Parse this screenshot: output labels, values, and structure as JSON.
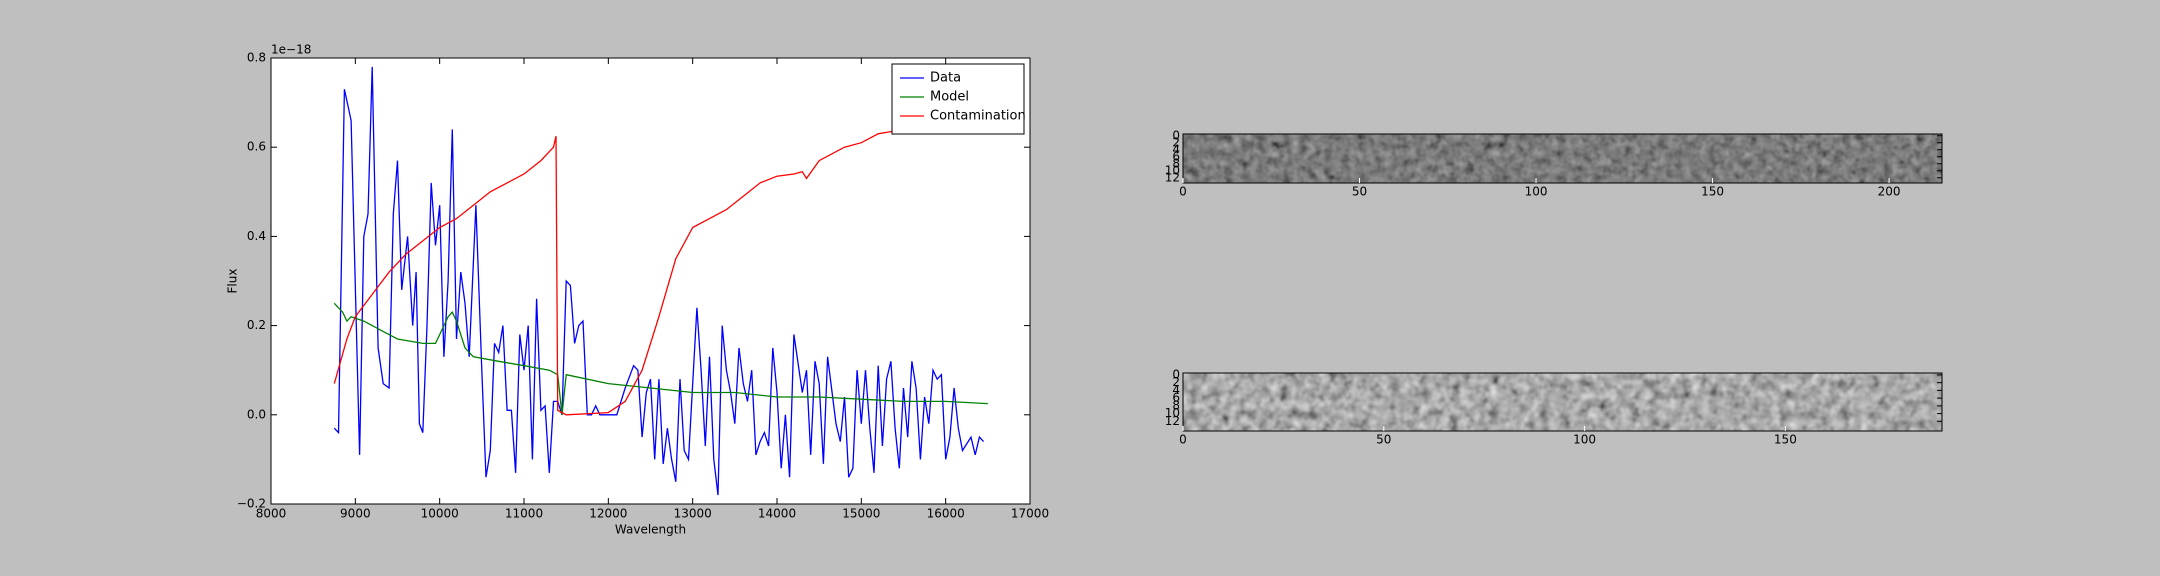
{
  "chart_data": [
    {
      "type": "line",
      "xlabel": "Wavelength",
      "ylabel": "Flux",
      "offset_text": "1e−18",
      "xlim": [
        8000,
        17000
      ],
      "xticks": [
        8000,
        9000,
        10000,
        11000,
        12000,
        13000,
        14000,
        15000,
        16000,
        17000
      ],
      "ylim": [
        -0.2,
        0.8
      ],
      "yticks": [
        {
          "value": -0.2,
          "label": "−0.2"
        },
        {
          "value": 0,
          "label": "0.0"
        },
        0.2,
        0.4,
        0.6,
        0.8
      ],
      "legend": "upper right",
      "series": [
        {
          "name": "Data",
          "color": "#0000ff",
          "x": [
            8750,
            8800,
            8870,
            8950,
            9050,
            9100,
            9150,
            9200,
            9270,
            9330,
            9400,
            9450,
            9500,
            9550,
            9620,
            9680,
            9720,
            9760,
            9800,
            9850,
            9900,
            9950,
            10000,
            10050,
            10100,
            10150,
            10200,
            10250,
            10300,
            10350,
            10430,
            10500,
            10550,
            10600,
            10650,
            10700,
            10750,
            10800,
            10850,
            10900,
            10950,
            11000,
            11050,
            11100,
            11150,
            11200,
            11250,
            11300,
            11350,
            11400,
            11450,
            11500,
            11550,
            11600,
            11650,
            11700,
            11750,
            11800,
            11850,
            11900,
            12000,
            12100,
            12200,
            12300,
            12350,
            12400,
            12450,
            12500,
            12550,
            12600,
            12650,
            12700,
            12750,
            12800,
            12850,
            12900,
            12950,
            13050,
            13100,
            13150,
            13200,
            13250,
            13300,
            13350,
            13400,
            13450,
            13500,
            13550,
            13600,
            13650,
            13700,
            13750,
            13800,
            13850,
            13900,
            13950,
            14000,
            14050,
            14100,
            14150,
            14200,
            14300,
            14350,
            14400,
            14450,
            14500,
            14550,
            14600,
            14700,
            14750,
            14800,
            14850,
            14900,
            14950,
            15000,
            15050,
            15100,
            15150,
            15200,
            15250,
            15300,
            15350,
            15400,
            15450,
            15500,
            15550,
            15600,
            15650,
            15700,
            15750,
            15800,
            15850,
            15900,
            15950,
            16000,
            16050,
            16100,
            16150,
            16200,
            16300,
            16350,
            16400,
            16450
          ],
          "values": [
            -0.03,
            -0.04,
            0.73,
            0.66,
            -0.09,
            0.4,
            0.45,
            0.78,
            0.15,
            0.07,
            0.06,
            0.45,
            0.57,
            0.28,
            0.4,
            0.2,
            0.32,
            -0.02,
            -0.04,
            0.2,
            0.52,
            0.38,
            0.47,
            0.13,
            0.3,
            0.64,
            0.17,
            0.32,
            0.25,
            0.13,
            0.47,
            0.1,
            -0.14,
            -0.08,
            0.16,
            0.14,
            0.2,
            0.01,
            0.01,
            -0.13,
            0.18,
            0.1,
            0.2,
            -0.1,
            0.26,
            0.01,
            0.02,
            -0.13,
            0.03,
            0.03,
            0,
            0.3,
            0.29,
            0.16,
            0.2,
            0.21,
            0,
            0,
            0.02,
            0,
            0,
            0,
            0.06,
            0.11,
            0.1,
            -0.05,
            0.05,
            0.08,
            -0.1,
            0.08,
            -0.11,
            -0.03,
            -0.1,
            -0.15,
            0.08,
            -0.08,
            -0.1,
            0.24,
            0.1,
            -0.07,
            0.13,
            -0.1,
            -0.18,
            0.2,
            0.1,
            0.05,
            -0.02,
            0.15,
            0.07,
            0.03,
            0.1,
            -0.09,
            -0.06,
            -0.04,
            -0.07,
            0.15,
            0.05,
            -0.12,
            0,
            -0.14,
            0.18,
            0.05,
            0.1,
            -0.09,
            0.12,
            0.07,
            -0.11,
            0.13,
            -0.02,
            -0.06,
            0.04,
            -0.14,
            -0.12,
            0.1,
            -0.02,
            0.1,
            -0.03,
            -0.13,
            0.11,
            -0.07,
            0.08,
            0.12,
            -0.03,
            -0.12,
            0.06,
            -0.05,
            0.12,
            0.06,
            -0.1,
            0.04,
            -0.02,
            0.1,
            0.08,
            0.09,
            -0.1,
            -0.05,
            0.06,
            -0.03,
            -0.08,
            -0.05,
            -0.09,
            -0.05,
            -0.06
          ]
        },
        {
          "name": "Model",
          "color": "#008000",
          "x": [
            8750,
            8850,
            8900,
            8950,
            9100,
            9300,
            9500,
            9800,
            9950,
            10000,
            10100,
            10150,
            10200,
            10300,
            10400,
            10700,
            11000,
            11300,
            11400,
            11450,
            11500,
            12000,
            12500,
            13000,
            13500,
            14000,
            14500,
            15000,
            15500,
            16000,
            16500
          ],
          "values": [
            0.25,
            0.23,
            0.21,
            0.22,
            0.21,
            0.19,
            0.17,
            0.16,
            0.16,
            0.18,
            0.22,
            0.23,
            0.21,
            0.15,
            0.13,
            0.12,
            0.11,
            0.1,
            0.09,
            0,
            0.09,
            0.07,
            0.06,
            0.05,
            0.05,
            0.04,
            0.04,
            0.035,
            0.03,
            0.03,
            0.025
          ]
        },
        {
          "name": "Contamination",
          "color": "#ff0000",
          "x": [
            8750,
            8900,
            9000,
            9200,
            9400,
            9600,
            9800,
            10000,
            10200,
            10400,
            10600,
            10800,
            11000,
            11200,
            11350,
            11380,
            11400,
            11500,
            12000,
            12200,
            12400,
            12600,
            12800,
            13000,
            13200,
            13400,
            13600,
            13800,
            14000,
            14200,
            14300,
            14350,
            14500,
            14800,
            15000,
            15200,
            15500,
            15800,
            16000,
            16200
          ],
          "values": [
            0.07,
            0.17,
            0.22,
            0.27,
            0.32,
            0.36,
            0.39,
            0.42,
            0.44,
            0.47,
            0.5,
            0.52,
            0.54,
            0.57,
            0.6,
            0.625,
            0.01,
            0,
            0.005,
            0.03,
            0.1,
            0.22,
            0.35,
            0.42,
            0.44,
            0.46,
            0.49,
            0.52,
            0.535,
            0.54,
            0.545,
            0.53,
            0.57,
            0.6,
            0.61,
            0.63,
            0.64,
            0.655,
            0.66,
            0.67
          ]
        }
      ]
    },
    {
      "type": "image",
      "xlim": [
        0,
        215
      ],
      "xticks": [
        0,
        50,
        100,
        150,
        200
      ],
      "ylim": [
        13.5,
        -0.5
      ],
      "yticks": [
        0,
        2,
        4,
        6,
        8,
        10,
        12
      ]
    },
    {
      "type": "image",
      "xlim": [
        0,
        189
      ],
      "xticks": [
        0,
        50,
        100,
        150
      ],
      "ylim": [
        14.5,
        -0.5
      ],
      "yticks": [
        0,
        2,
        4,
        6,
        8,
        10,
        12
      ]
    }
  ]
}
